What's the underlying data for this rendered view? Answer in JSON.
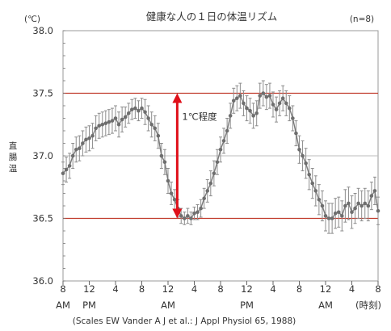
{
  "chart_data": {
    "type": "line",
    "title": "健康な人の１日の体温リズム",
    "unit_label": "(℃)",
    "sample_label": "(n=8)",
    "ylabel": "直腸温",
    "xlabel": "(時刻)",
    "source": "(Scales EW Vander A J et al.: J Appl Physiol 65, 1988)",
    "annotation": "1℃程度",
    "ylim": [
      36.0,
      38.0
    ],
    "y_ticks": [
      "38.0",
      "37.5",
      "37.0",
      "36.5",
      "36.0"
    ],
    "xlim": [
      0,
      48
    ],
    "x_ticks": [
      {
        "hour": 0,
        "time": "8",
        "period": "AM"
      },
      {
        "hour": 4,
        "time": "12",
        "period": "PM"
      },
      {
        "hour": 8,
        "time": "4",
        "period": ""
      },
      {
        "hour": 12,
        "time": "8",
        "period": ""
      },
      {
        "hour": 16,
        "time": "12",
        "period": "AM"
      },
      {
        "hour": 20,
        "time": "4",
        "period": ""
      },
      {
        "hour": 24,
        "time": "8",
        "period": ""
      },
      {
        "hour": 28,
        "time": "12",
        "period": "PM"
      },
      {
        "hour": 32,
        "time": "4",
        "period": ""
      },
      {
        "hour": 36,
        "time": "8",
        "period": ""
      },
      {
        "hour": 40,
        "time": "12",
        "period": "AM"
      },
      {
        "hour": 44,
        "time": "4",
        "period": ""
      },
      {
        "hour": 48,
        "time": "8",
        "period": ""
      }
    ],
    "reference_lines": [
      37.5,
      36.5
    ],
    "colors": {
      "series": "#7a7a7a",
      "error": "#8c8c8c",
      "reference": "#c0392b",
      "annotation": "#e0101a",
      "axis": "#444444"
    },
    "series": [
      {
        "x": [
          0.0,
          0.5,
          1.0,
          1.5,
          2.0,
          2.5,
          3.0,
          3.5,
          4.0,
          4.5,
          5.0,
          5.5,
          6.0,
          6.5,
          7.0,
          7.5,
          8.0,
          8.5,
          9.0,
          9.5,
          10.0,
          10.5,
          11.0,
          11.5,
          12.0,
          12.5,
          13.0,
          13.5,
          14.0,
          14.5,
          15.0,
          15.5,
          16.0,
          16.5,
          17.0,
          17.5,
          18.0,
          18.5,
          19.0,
          19.5,
          20.0,
          20.5,
          21.0,
          21.5,
          22.0,
          22.5,
          23.0,
          23.5,
          24.0,
          24.5,
          25.0,
          25.5,
          26.0,
          26.5,
          27.0,
          27.5,
          28.0,
          28.5,
          29.0,
          29.5,
          30.0,
          30.5,
          31.0,
          31.5,
          32.0,
          32.5,
          33.0,
          33.5,
          34.0,
          34.5,
          35.0,
          35.5,
          36.0,
          36.5,
          37.0,
          37.5,
          38.0,
          38.5,
          39.0,
          39.5,
          40.0,
          40.5,
          41.0,
          41.5,
          42.0,
          42.5,
          43.0,
          43.5,
          44.0,
          44.5,
          45.0,
          45.5,
          46.0,
          46.5,
          47.0,
          47.5,
          48.0
        ],
        "y": [
          36.86,
          36.89,
          36.92,
          37.0,
          37.05,
          37.06,
          37.1,
          37.13,
          37.14,
          37.16,
          37.22,
          37.24,
          37.25,
          37.26,
          37.27,
          37.28,
          37.3,
          37.25,
          37.29,
          37.31,
          37.34,
          37.37,
          37.38,
          37.36,
          37.38,
          37.35,
          37.3,
          37.25,
          37.22,
          37.16,
          37.0,
          36.95,
          36.8,
          36.7,
          36.65,
          36.58,
          36.52,
          36.5,
          36.52,
          36.5,
          36.54,
          36.55,
          36.58,
          36.66,
          36.72,
          36.78,
          36.86,
          36.95,
          37.05,
          37.12,
          37.2,
          37.32,
          37.44,
          37.46,
          37.48,
          37.42,
          37.38,
          37.36,
          37.32,
          37.34,
          37.48,
          37.5,
          37.47,
          37.48,
          37.41,
          37.37,
          37.42,
          37.46,
          37.42,
          37.38,
          37.3,
          37.18,
          37.05,
          37.0,
          36.94,
          36.85,
          36.78,
          36.72,
          36.65,
          36.6,
          36.52,
          36.5,
          36.5,
          36.54,
          36.55,
          36.52,
          36.6,
          36.62,
          36.55,
          36.58,
          36.62,
          36.6,
          36.62,
          36.6,
          36.68,
          36.72,
          36.56
        ],
        "err": [
          0.09,
          0.1,
          0.1,
          0.1,
          0.1,
          0.1,
          0.1,
          0.1,
          0.1,
          0.1,
          0.1,
          0.1,
          0.1,
          0.1,
          0.1,
          0.1,
          0.1,
          0.1,
          0.1,
          0.08,
          0.08,
          0.08,
          0.08,
          0.08,
          0.08,
          0.1,
          0.1,
          0.1,
          0.1,
          0.1,
          0.1,
          0.1,
          0.1,
          0.09,
          0.08,
          0.07,
          0.06,
          0.05,
          0.06,
          0.05,
          0.05,
          0.06,
          0.07,
          0.08,
          0.09,
          0.1,
          0.1,
          0.1,
          0.1,
          0.1,
          0.1,
          0.1,
          0.1,
          0.1,
          0.1,
          0.1,
          0.1,
          0.1,
          0.1,
          0.1,
          0.1,
          0.1,
          0.1,
          0.1,
          0.1,
          0.1,
          0.1,
          0.1,
          0.1,
          0.1,
          0.1,
          0.1,
          0.11,
          0.12,
          0.12,
          0.12,
          0.12,
          0.12,
          0.12,
          0.12,
          0.12,
          0.12,
          0.12,
          0.12,
          0.12,
          0.12,
          0.13,
          0.13,
          0.13,
          0.12,
          0.12,
          0.12,
          0.12,
          0.12,
          0.11,
          0.11,
          0.11
        ]
      }
    ]
  }
}
